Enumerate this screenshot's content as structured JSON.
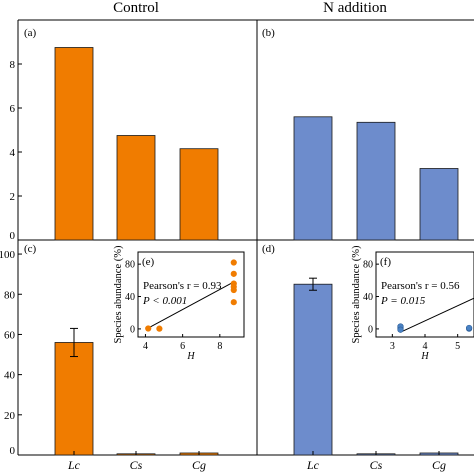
{
  "column_titles": [
    "Control",
    "N addition"
  ],
  "colors": {
    "control": "#f07c00",
    "n_addition": "#6d8ccc",
    "axis": "#000000"
  },
  "chart_data": [
    {
      "panel": "(a)",
      "type": "bar",
      "group": "Control",
      "categories": [
        "Lc",
        "Cs",
        "Cg"
      ],
      "values": [
        8.75,
        4.75,
        4.15
      ],
      "ylim": [
        0,
        10
      ],
      "yticks": [
        "0",
        "2",
        "4",
        "6",
        "8"
      ]
    },
    {
      "panel": "(b)",
      "type": "bar",
      "group": "N addition",
      "categories": [
        "Lc",
        "Cs",
        "Cg"
      ],
      "values": [
        5.6,
        5.35,
        3.25
      ],
      "ylim": [
        0,
        10
      ]
    },
    {
      "panel": "(c)",
      "type": "bar",
      "group": "Control",
      "categories": [
        "Lc",
        "Cs",
        "Cg"
      ],
      "values": [
        56,
        0.3,
        1.0
      ],
      "errors": [
        7,
        0,
        0
      ],
      "ylim": [
        0,
        107
      ],
      "yticks": [
        "0",
        "20",
        "40",
        "60",
        "80",
        "100"
      ]
    },
    {
      "panel": "(d)",
      "type": "bar",
      "group": "N addition",
      "categories": [
        "Lc",
        "Cs",
        "Cg"
      ],
      "values": [
        85,
        0.3,
        1.0
      ],
      "errors": [
        3,
        0,
        0
      ],
      "ylim": [
        0,
        107
      ]
    },
    {
      "panel": "(e)",
      "type": "scatter",
      "group": "Control",
      "ylabel": "Species abundance (%)",
      "xlabel": "H",
      "xlim": [
        3.6,
        9.3
      ],
      "ylim": [
        -10,
        95
      ],
      "xticks": [
        4,
        6,
        8
      ],
      "yticks": [
        0,
        40,
        80
      ],
      "points": [
        [
          4.15,
          0.5
        ],
        [
          4.75,
          0.3
        ],
        [
          8.75,
          82
        ],
        [
          8.75,
          68
        ],
        [
          8.75,
          56
        ],
        [
          8.75,
          52
        ],
        [
          8.75,
          48
        ],
        [
          8.75,
          33
        ]
      ],
      "fit": [
        [
          4.15,
          1
        ],
        [
          8.75,
          58
        ]
      ],
      "annotations": [
        "Pearson's r = 0.93",
        "P < 0.001"
      ]
    },
    {
      "panel": "(f)",
      "type": "scatter",
      "group": "N addition",
      "ylabel": "Species abundance (%)",
      "xlabel": "H",
      "xlim": [
        2.5,
        5.5
      ],
      "ylim": [
        -10,
        95
      ],
      "xticks": [
        3,
        4,
        5
      ],
      "yticks": [
        0,
        40,
        80
      ],
      "points": [
        [
          3.25,
          0.5
        ],
        [
          3.25,
          1.5
        ],
        [
          3.25,
          3
        ],
        [
          3.25,
          -1
        ],
        [
          5.35,
          0.3
        ],
        [
          5.35,
          1.2
        ]
      ],
      "fit": [
        [
          3.25,
          -4
        ],
        [
          5.5,
          38
        ]
      ],
      "annotations": [
        "Pearson's r = 0.56",
        "P = 0.015"
      ]
    }
  ]
}
